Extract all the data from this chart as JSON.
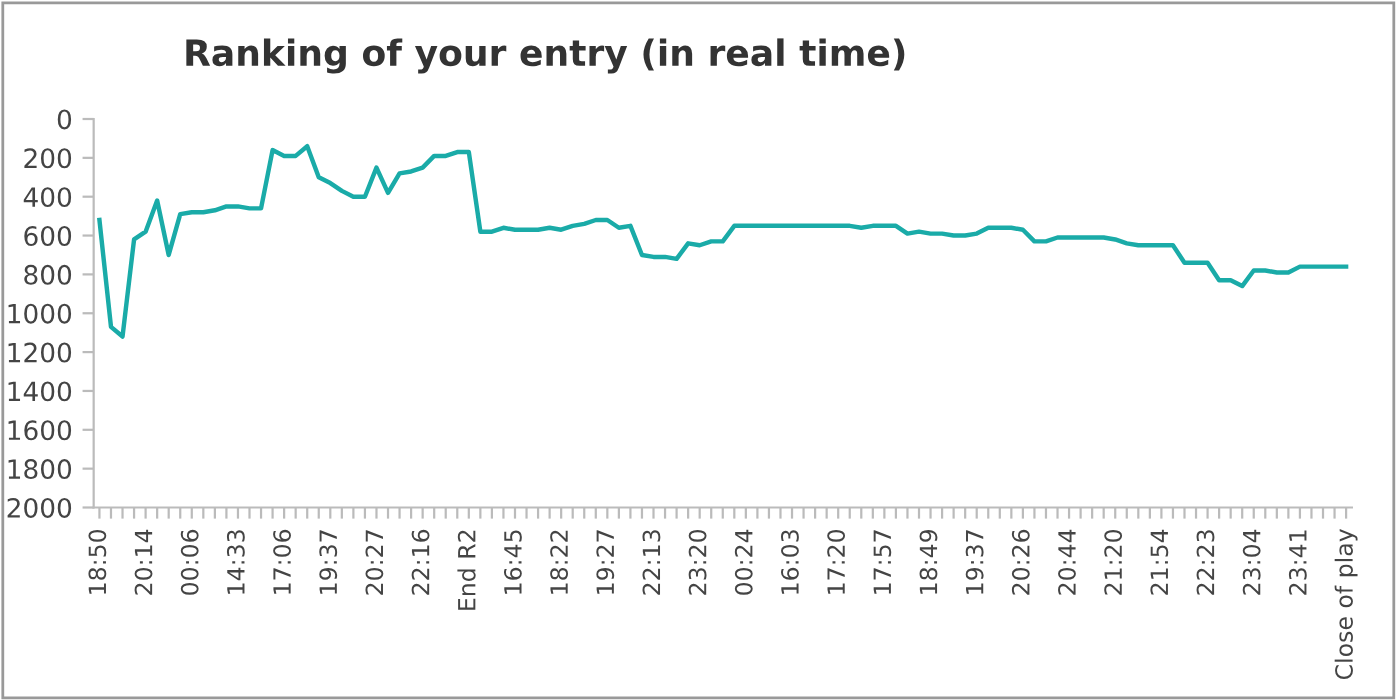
{
  "chart_data": {
    "type": "line",
    "title": "Ranking of your entry (in real time)",
    "categories": [
      "18:50",
      null,
      null,
      null,
      "20:14",
      null,
      null,
      null,
      "00:06",
      null,
      null,
      null,
      "14:33",
      null,
      null,
      null,
      "17:06",
      null,
      null,
      null,
      "19:37",
      null,
      null,
      null,
      "20:27",
      null,
      null,
      null,
      "22:16",
      null,
      null,
      null,
      "End R2",
      null,
      null,
      null,
      "16:45",
      null,
      null,
      null,
      "18:22",
      null,
      null,
      null,
      "19:27",
      null,
      null,
      null,
      "22:13",
      null,
      null,
      null,
      "23:20",
      null,
      null,
      null,
      "00:24",
      null,
      null,
      null,
      "16:03",
      null,
      null,
      null,
      "17:20",
      null,
      null,
      null,
      "17:57",
      null,
      null,
      null,
      "18:49",
      null,
      null,
      null,
      "19:37",
      null,
      null,
      null,
      "20:26",
      null,
      null,
      null,
      "20:44",
      null,
      null,
      null,
      "21:20",
      null,
      null,
      null,
      "21:54",
      null,
      null,
      null,
      "22:23",
      null,
      null,
      null,
      "23:04",
      null,
      null,
      null,
      "23:41",
      null,
      null,
      null,
      "Close of play"
    ],
    "series": [
      {
        "color": "#1aaba8",
        "values": [
          520,
          1070,
          1120,
          620,
          580,
          420,
          700,
          490,
          480,
          480,
          470,
          450,
          450,
          460,
          460,
          160,
          190,
          190,
          140,
          300,
          330,
          370,
          400,
          400,
          250,
          380,
          280,
          270,
          250,
          190,
          190,
          170,
          170,
          580,
          580,
          560,
          570,
          570,
          570,
          560,
          570,
          550,
          540,
          520,
          520,
          560,
          550,
          700,
          710,
          710,
          720,
          640,
          650,
          630,
          630,
          550,
          550,
          550,
          550,
          550,
          550,
          550,
          550,
          550,
          550,
          550,
          560,
          550,
          550,
          550,
          590,
          580,
          590,
          590,
          600,
          600,
          590,
          560,
          560,
          560,
          570,
          630,
          630,
          610,
          610,
          610,
          610,
          610,
          620,
          640,
          650,
          650,
          650,
          650,
          740,
          740,
          740,
          830,
          830,
          860,
          780,
          780,
          790,
          790,
          760,
          760,
          760,
          760,
          760
        ]
      }
    ],
    "ylim": [
      2000,
      0
    ],
    "yticks": [
      0,
      200,
      400,
      600,
      800,
      1000,
      1200,
      1400,
      1600,
      1800,
      2000
    ],
    "grid": false,
    "marker": "none",
    "line_style": "solid"
  }
}
